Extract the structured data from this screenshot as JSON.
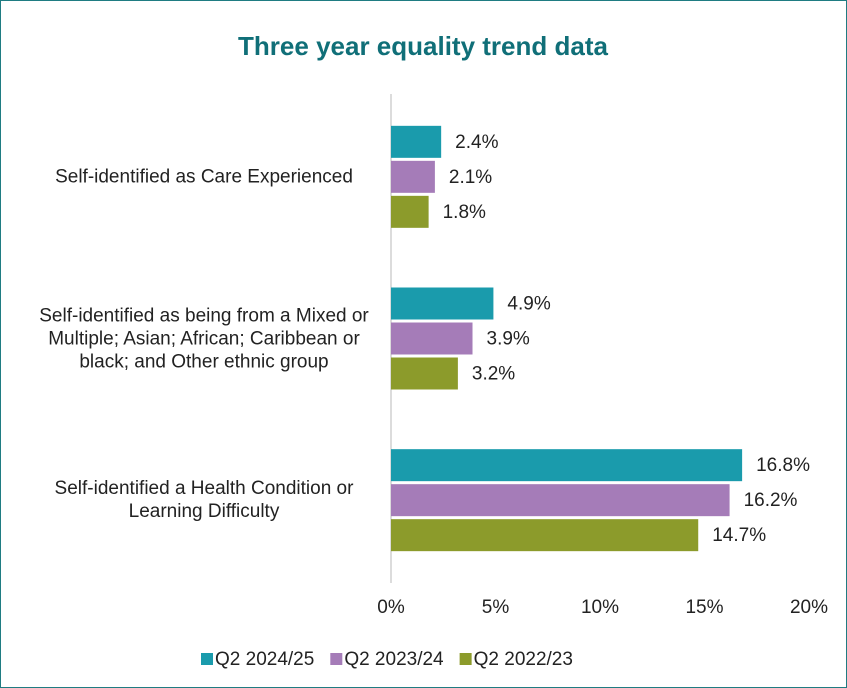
{
  "chart_data": {
    "type": "bar",
    "orientation": "horizontal",
    "title": "Three year equality trend data",
    "categories": [
      "Self-identified as Care Experienced",
      "Self-identified as being from a Mixed or Multiple; Asian; African; Caribbean or black; and Other ethnic group",
      "Self-identified a Health Condition or Learning Difficulty"
    ],
    "series": [
      {
        "name": "Q2 2024/25",
        "color": "#1a9bac",
        "values": [
          2.4,
          4.9,
          16.8
        ],
        "value_labels": [
          "2.4%",
          "4.9%",
          "16.8%"
        ]
      },
      {
        "name": "Q2 2023/24",
        "color": "#a57cb8",
        "values": [
          2.1,
          3.9,
          16.2
        ],
        "value_labels": [
          "2.1%",
          "3.9%",
          "16.2%"
        ]
      },
      {
        "name": "Q2 2022/23",
        "color": "#8c9b2b",
        "values": [
          1.8,
          3.2,
          14.7
        ],
        "value_labels": [
          "1.8%",
          "3.2%",
          "14.7%"
        ]
      }
    ],
    "xlim": [
      0,
      20
    ],
    "xticks": [
      {
        "value": 0,
        "label": "0%"
      },
      {
        "value": 5,
        "label": "5%"
      },
      {
        "value": 10,
        "label": "10%"
      },
      {
        "value": 15,
        "label": "15%"
      },
      {
        "value": 20,
        "label": "20%"
      }
    ],
    "legend": "bottom",
    "grid": false
  }
}
